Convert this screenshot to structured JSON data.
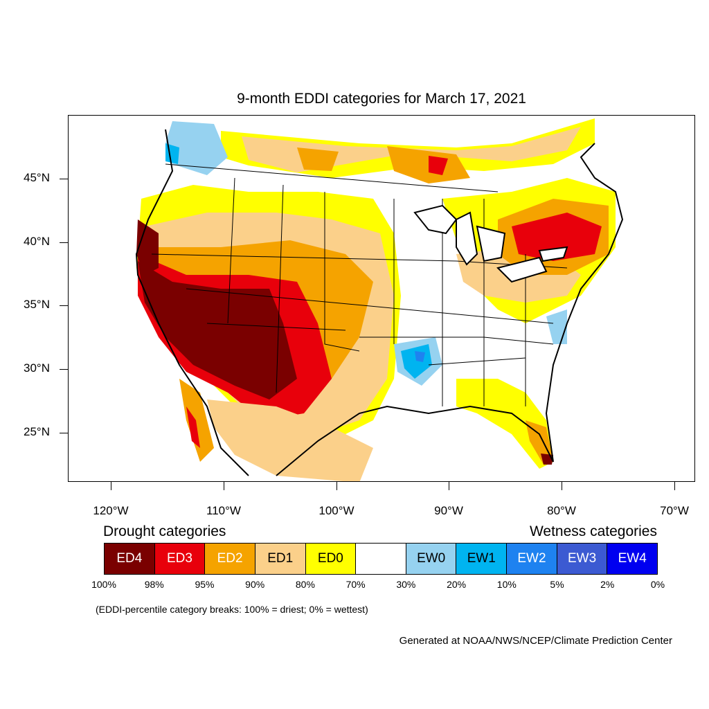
{
  "title": "9-month EDDI categories for March 17, 2021",
  "map": {
    "lat_labels": [
      "45°N",
      "40°N",
      "35°N",
      "30°N",
      "25°N"
    ],
    "lon_labels": [
      "120°W",
      "110°W",
      "100°W",
      "90°W",
      "80°W",
      "70°W"
    ],
    "region": "Contiguous United States",
    "colors": {
      "ED4": "#7a0000",
      "ED3": "#e8000b",
      "ED2": "#f5a300",
      "ED1": "#fbd08a",
      "ED0": "#ffff00",
      "EW0": "#96d2f0",
      "EW1": "#00b4f0",
      "EW2": "#1e82f0",
      "EW3": "#3c5ad2",
      "EW4": "#0000f0"
    }
  },
  "legend": {
    "drought_heading": "Drought categories",
    "wetness_heading": "Wetness categories",
    "categories": [
      {
        "label": "ED4",
        "color": "#7a0000",
        "text_color": "#ffffff"
      },
      {
        "label": "ED3",
        "color": "#e8000b",
        "text_color": "#ffffff"
      },
      {
        "label": "ED2",
        "color": "#f5a300",
        "text_color": "#ffffff"
      },
      {
        "label": "ED1",
        "color": "#fbd08a",
        "text_color": "#000000"
      },
      {
        "label": "ED0",
        "color": "#ffff00",
        "text_color": "#000000"
      },
      {
        "label": "",
        "color": "#ffffff",
        "text_color": "#000000"
      },
      {
        "label": "EW0",
        "color": "#96d2f0",
        "text_color": "#000000"
      },
      {
        "label": "EW1",
        "color": "#00b4f0",
        "text_color": "#000000"
      },
      {
        "label": "EW2",
        "color": "#1e82f0",
        "text_color": "#ffffff"
      },
      {
        "label": "EW3",
        "color": "#3c5ad2",
        "text_color": "#ffffff"
      },
      {
        "label": "EW4",
        "color": "#0000f0",
        "text_color": "#ffffff"
      }
    ],
    "percentiles": [
      "100%",
      "98%",
      "95%",
      "90%",
      "80%",
      "70%",
      "30%",
      "20%",
      "10%",
      "5%",
      "2%",
      "0%"
    ]
  },
  "note": "(EDDI-percentile category breaks: 100% = driest; 0% = wettest)",
  "credit": "Generated at NOAA/NWS/NCEP/Climate Prediction Center"
}
